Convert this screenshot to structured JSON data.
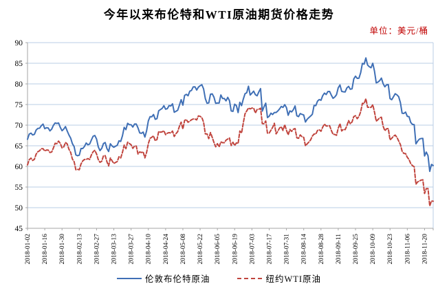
{
  "page": {
    "title": "今年以来布伦特和WTI原油期货价格走势",
    "unit_label": "单位：美元/桶"
  },
  "chart_data": {
    "type": "line",
    "title": "今年以来布伦特和WTI原油期货价格走势",
    "unit": "单位：美元/桶",
    "ylabel": "美元/桶",
    "ylim": [
      45,
      90
    ],
    "y_ticks": [
      45,
      50,
      55,
      60,
      65,
      70,
      75,
      80,
      85,
      90
    ],
    "grid": "horizontal",
    "legend_position": "bottom",
    "x_tick_interval": 10,
    "x_tick_labels": [
      "2018-01-02",
      "2018-01-16",
      "2018-01-30",
      "2018-02-13",
      "2018-02-27",
      "2018-03-13",
      "2018-03-27",
      "2018-04-10",
      "2018-04-24",
      "2018-05-08",
      "2018-05-22",
      "2018-06-05",
      "2018-06-19",
      "2018-07-03",
      "2018-07-17",
      "2018-07-31",
      "2018-08-14",
      "2018-08-28",
      "2018-09-11",
      "2018-09-25",
      "2018-10-09",
      "2018-10-23",
      "2018-11-06",
      "2018-11-20"
    ],
    "colors": {
      "brent": "#3f6fb5",
      "wti": "#c0443d",
      "gridline": "#b8cce4",
      "axis": "#a6a6a6",
      "unit_text": "#c00000"
    },
    "series": [
      {
        "key": "brent-line",
        "name": "伦敦布伦特原油",
        "color": "#3f6fb5",
        "style": "solid",
        "values": [
          66.57,
          67.84,
          68.07,
          67.62,
          67.78,
          68.82,
          69.2,
          69.26,
          69.87,
          70.26,
          69.15,
          69.38,
          69.31,
          68.61,
          69.03,
          69.96,
          70.53,
          70.42,
          70.52,
          69.46,
          68.65,
          69.05,
          69.65,
          68.58,
          67.62,
          66.86,
          65.51,
          64.81,
          62.79,
          62.59,
          62.72,
          64.36,
          64.33,
          64.84,
          65.67,
          65.25,
          65.42,
          66.39,
          67.31,
          67.5,
          66.63,
          64.73,
          63.83,
          64.37,
          65.54,
          65.79,
          64.34,
          63.61,
          65.49,
          64.95,
          64.64,
          64.89,
          65.12,
          66.21,
          66.05,
          67.42,
          69.47,
          68.91,
          70.45,
          70.12,
          70.11,
          69.53,
          70.27,
          70.27,
          69.34,
          68.12,
          68.02,
          68.33,
          67.11,
          68.65,
          71.04,
          72.06,
          72.02,
          72.58,
          71.42,
          71.58,
          73.48,
          73.78,
          74.06,
          74.71,
          73.86,
          74.0,
          74.74,
          74.64,
          75.17,
          73.13,
          73.36,
          73.62,
          74.87,
          76.17,
          74.85,
          77.21,
          77.47,
          77.12,
          78.23,
          78.43,
          79.28,
          79.3,
          78.51,
          79.22,
          79.57,
          79.8,
          78.79,
          76.44,
          75.3,
          75.39,
          77.5,
          77.59,
          76.79,
          75.29,
          75.38,
          75.36,
          77.32,
          76.46,
          76.46,
          75.88,
          76.74,
          75.94,
          73.44,
          73.34,
          75.08,
          74.74,
          73.05,
          75.55,
          74.73,
          76.31,
          77.62,
          77.85,
          79.44,
          77.3,
          77.76,
          78.24,
          77.39,
          77.11,
          78.07,
          78.86,
          73.4,
          74.45,
          75.33,
          71.84,
          72.16,
          72.9,
          72.58,
          73.07,
          73.06,
          73.44,
          73.93,
          74.54,
          74.29,
          74.97,
          74.25,
          72.39,
          73.45,
          73.21,
          73.75,
          74.65,
          72.28,
          72.07,
          72.81,
          72.61,
          72.46,
          70.76,
          71.43,
          71.83,
          72.21,
          72.63,
          74.78,
          74.73,
          75.82,
          76.21,
          76.02,
          77.14,
          77.77,
          77.42,
          78.15,
          78.17,
          77.27,
          76.5,
          76.83,
          77.37,
          79.06,
          79.74,
          78.18,
          78.09,
          78.05,
          79.03,
          79.4,
          78.7,
          78.8,
          81.2,
          81.87,
          81.34,
          81.38,
          82.72,
          84.98,
          84.8,
          86.29,
          84.58,
          84.16,
          83.91,
          85.0,
          83.09,
          80.26,
          80.43,
          80.78,
          81.41,
          80.05,
          79.29,
          79.78,
          79.83,
          76.44,
          76.17,
          76.89,
          77.62,
          77.34,
          76.91,
          75.47,
          72.89,
          72.83,
          73.17,
          72.13,
          72.07,
          70.65,
          70.18,
          70.12,
          65.47,
          66.12,
          66.62,
          66.76,
          66.79,
          62.53,
          63.48,
          62.6,
          58.8,
          60.48,
          60.21
        ]
      },
      {
        "key": "wti-line",
        "name": "纽约WTI原油",
        "color": "#c0443d",
        "style": "dashed",
        "values": [
          60.37,
          61.63,
          62.01,
          61.44,
          61.73,
          62.96,
          63.57,
          63.8,
          64.3,
          64.3,
          63.73,
          63.97,
          63.95,
          63.37,
          63.49,
          64.47,
          65.61,
          65.51,
          66.14,
          65.56,
          64.5,
          64.73,
          65.8,
          65.45,
          64.15,
          63.39,
          61.79,
          61.15,
          59.2,
          59.29,
          59.19,
          60.6,
          61.34,
          61.68,
          61.68,
          61.9,
          61.68,
          62.77,
          63.55,
          63.91,
          63.01,
          61.64,
          60.99,
          61.25,
          62.57,
          62.6,
          61.15,
          60.12,
          62.04,
          61.36,
          60.71,
          60.96,
          61.19,
          62.34,
          62.06,
          63.4,
          65.17,
          64.3,
          65.88,
          65.55,
          65.25,
          64.38,
          64.94,
          64.94,
          63.01,
          63.51,
          63.37,
          63.54,
          62.06,
          63.42,
          65.51,
          66.82,
          67.07,
          67.39,
          66.22,
          66.52,
          68.47,
          68.29,
          68.38,
          68.64,
          67.7,
          68.05,
          68.19,
          68.1,
          68.57,
          67.25,
          67.93,
          68.43,
          69.72,
          70.73,
          69.06,
          71.14,
          71.36,
          70.7,
          70.96,
          71.31,
          71.49,
          71.49,
          71.28,
          72.24,
          72.13,
          71.84,
          70.71,
          67.88,
          67.88,
          66.73,
          68.21,
          67.04,
          65.81,
          64.75,
          65.52,
          64.73,
          65.95,
          65.74,
          65.74,
          66.36,
          66.64,
          66.89,
          65.06,
          65.85,
          65.07,
          65.71,
          65.54,
          68.58,
          68.08,
          70.53,
          72.76,
          73.45,
          74.15,
          73.94,
          74.14,
          74.14,
          72.94,
          73.8,
          73.85,
          74.11,
          70.38,
          70.33,
          71.01,
          68.06,
          68.08,
          68.76,
          69.46,
          70.46,
          67.89,
          68.52,
          69.3,
          69.61,
          68.69,
          70.13,
          68.76,
          67.66,
          68.96,
          68.49,
          69.01,
          69.17,
          66.94,
          66.81,
          67.63,
          67.2,
          67.04,
          65.01,
          65.46,
          65.91,
          66.43,
          67.35,
          67.86,
          67.83,
          68.72,
          68.87,
          68.53,
          69.51,
          70.25,
          69.8,
          69.8,
          69.87,
          68.72,
          67.77,
          67.75,
          67.54,
          69.25,
          70.37,
          68.59,
          68.99,
          68.91,
          69.85,
          71.12,
          70.32,
          70.78,
          72.08,
          72.28,
          71.57,
          72.12,
          73.25,
          75.3,
          75.23,
          76.41,
          74.33,
          74.34,
          74.29,
          74.96,
          73.17,
          70.97,
          71.34,
          71.78,
          71.92,
          69.75,
          68.65,
          69.12,
          69.17,
          66.43,
          66.82,
          67.33,
          67.59,
          67.04,
          66.18,
          65.31,
          63.69,
          63.14,
          63.1,
          62.21,
          61.67,
          60.67,
          60.19,
          59.93,
          55.69,
          56.25,
          56.46,
          56.68,
          56.76,
          53.43,
          54.63,
          54.63,
          50.42,
          51.63,
          51.56
        ]
      }
    ]
  }
}
